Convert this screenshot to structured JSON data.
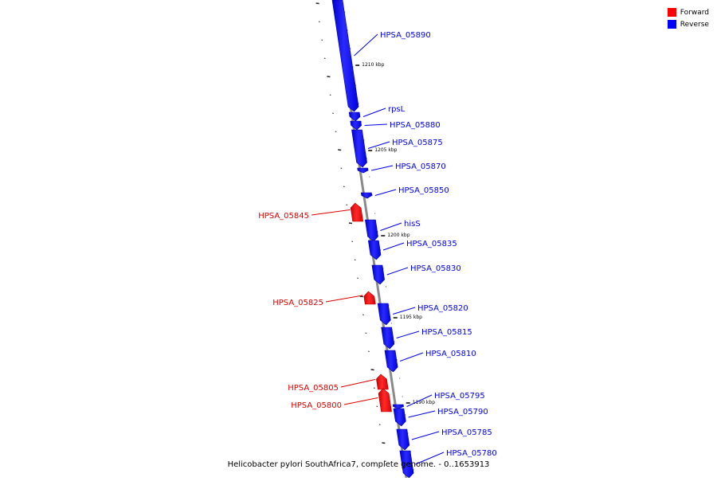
{
  "legend": {
    "forward": {
      "label": "Forward",
      "color": "#ff0000"
    },
    "reverse": {
      "label": "Reverse",
      "color": "#0000ff"
    }
  },
  "caption": "Helicobacter pylori SouthAfrica7, complete genome. - 0..1653913",
  "kbp_marks": [
    "1210 kbp",
    "1205 kbp",
    "1200 kbp",
    "1195 kbp",
    "1190 kbp"
  ],
  "genes": [
    {
      "name": "HPSA_05890",
      "strand": "reverse"
    },
    {
      "name": "rpsL",
      "strand": "reverse"
    },
    {
      "name": "HPSA_05880",
      "strand": "reverse"
    },
    {
      "name": "HPSA_05875",
      "strand": "reverse"
    },
    {
      "name": "HPSA_05870",
      "strand": "reverse"
    },
    {
      "name": "HPSA_05850",
      "strand": "reverse"
    },
    {
      "name": "HPSA_05845",
      "strand": "forward"
    },
    {
      "name": "hisS",
      "strand": "reverse"
    },
    {
      "name": "HPSA_05835",
      "strand": "reverse"
    },
    {
      "name": "HPSA_05830",
      "strand": "reverse"
    },
    {
      "name": "HPSA_05825",
      "strand": "forward"
    },
    {
      "name": "HPSA_05820",
      "strand": "reverse"
    },
    {
      "name": "HPSA_05815",
      "strand": "reverse"
    },
    {
      "name": "HPSA_05810",
      "strand": "reverse"
    },
    {
      "name": "HPSA_05805",
      "strand": "forward"
    },
    {
      "name": "HPSA_05800",
      "strand": "forward"
    },
    {
      "name": "HPSA_05795",
      "strand": "reverse"
    },
    {
      "name": "HPSA_05790",
      "strand": "reverse"
    },
    {
      "name": "HPSA_05785",
      "strand": "reverse"
    },
    {
      "name": "HPSA_05780",
      "strand": "reverse"
    }
  ]
}
